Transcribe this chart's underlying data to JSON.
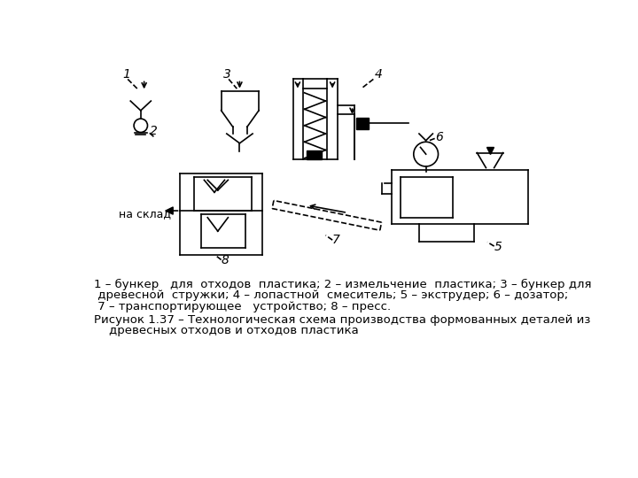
{
  "bg_color": "#ffffff",
  "line_color": "#000000",
  "caption_line1": "1 – бункер   для  отходов  пластика; 2 – измельчение  пластика; 3 – бункер для",
  "caption_line2": " древесной  стружки; 4 – лопастной  смеситель; 5 – экструдер; 6 – дозатор;",
  "caption_line3": " 7 – транспортирующее   устройство; 8 – пресс.",
  "caption_line4": "Рисунок 1.37 – Технологическая схема производства формованных деталей из",
  "caption_line5": "    древесных отходов и отходов пластика",
  "na_sklad": "на склад"
}
